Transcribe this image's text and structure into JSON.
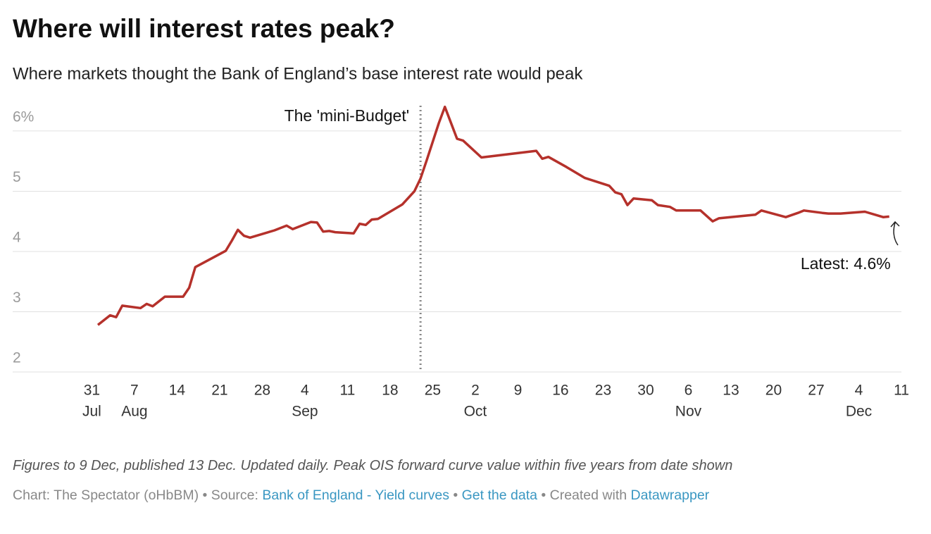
{
  "chart_data": {
    "type": "line",
    "title": "Where will interest rates peak?",
    "subtitle": "Where markets thought the Bank of England’s base interest rate would peak",
    "color": "#b5312b",
    "x": [
      "08-01",
      "08-03",
      "08-04",
      "08-05",
      "08-08",
      "08-09",
      "08-10",
      "08-11",
      "08-12",
      "08-15",
      "08-16",
      "08-17",
      "08-22",
      "08-23",
      "08-24",
      "08-25",
      "08-26",
      "08-30",
      "09-01",
      "09-02",
      "09-05",
      "09-06",
      "09-07",
      "09-08",
      "09-09",
      "09-12",
      "09-13",
      "09-14",
      "09-15",
      "09-16",
      "09-20",
      "09-22",
      "09-23",
      "09-24",
      "09-26",
      "09-27",
      "09-29",
      "09-30",
      "10-03",
      "10-12",
      "10-13",
      "10-14",
      "10-17",
      "10-20",
      "10-24",
      "10-25",
      "10-26",
      "10-27",
      "10-28",
      "10-31",
      "11-01",
      "11-03",
      "11-04",
      "11-08",
      "11-10",
      "11-11",
      "11-17",
      "11-18",
      "11-22",
      "11-24",
      "11-25",
      "11-28",
      "11-29",
      "12-01",
      "12-05",
      "12-08",
      "12-09"
    ],
    "values": [
      2.78,
      2.94,
      2.91,
      3.1,
      3.06,
      3.13,
      3.09,
      3.17,
      3.25,
      3.25,
      3.4,
      3.74,
      4.01,
      4.18,
      4.36,
      4.26,
      4.23,
      4.35,
      4.43,
      4.37,
      4.49,
      4.48,
      4.33,
      4.34,
      4.32,
      4.3,
      4.46,
      4.44,
      4.53,
      4.54,
      4.78,
      5.0,
      5.21,
      5.51,
      6.13,
      6.4,
      5.87,
      5.84,
      5.56,
      5.67,
      5.54,
      5.57,
      5.4,
      5.22,
      5.09,
      4.98,
      4.95,
      4.77,
      4.88,
      4.85,
      4.77,
      4.74,
      4.68,
      4.68,
      4.5,
      4.55,
      4.61,
      4.68,
      4.57,
      4.64,
      4.68,
      4.64,
      4.63,
      4.63,
      4.66,
      4.57,
      4.58
    ],
    "xlim": [
      "07-18",
      "12-11"
    ],
    "ylim": [
      2,
      6.42
    ],
    "yticks": [
      2,
      3,
      4,
      5,
      {
        "value": 6,
        "label": "6%"
      }
    ],
    "xticks": [
      {
        "value": "07-31",
        "label": "31"
      },
      {
        "value": "08-07",
        "label": "7"
      },
      {
        "value": "08-14",
        "label": "14"
      },
      {
        "value": "08-21",
        "label": "21"
      },
      {
        "value": "08-28",
        "label": "28"
      },
      {
        "value": "09-04",
        "label": "4"
      },
      {
        "value": "09-11",
        "label": "11"
      },
      {
        "value": "09-18",
        "label": "18"
      },
      {
        "value": "09-25",
        "label": "25"
      },
      {
        "value": "10-02",
        "label": "2"
      },
      {
        "value": "10-09",
        "label": "9"
      },
      {
        "value": "10-16",
        "label": "16"
      },
      {
        "value": "10-23",
        "label": "23"
      },
      {
        "value": "10-30",
        "label": "30"
      },
      {
        "value": "11-06",
        "label": "6"
      },
      {
        "value": "11-13",
        "label": "13"
      },
      {
        "value": "11-20",
        "label": "20"
      },
      {
        "value": "11-27",
        "label": "27"
      },
      {
        "value": "12-04",
        "label": "4"
      },
      {
        "value": "12-11",
        "label": "11"
      }
    ],
    "xtick_months": [
      {
        "value": "07-31",
        "label": "Jul"
      },
      {
        "value": "08-07",
        "label": "Aug"
      },
      {
        "value": "09-04",
        "label": "Sep"
      },
      {
        "value": "10-02",
        "label": "Oct"
      },
      {
        "value": "11-06",
        "label": "Nov"
      },
      {
        "value": "12-04",
        "label": "Dec"
      }
    ],
    "grid": true,
    "annotations": [
      {
        "text": "The 'mini-Budget'",
        "x": "09-23"
      },
      {
        "text": "Latest: 4.6%"
      }
    ],
    "notes": "Figures to 9 Dec, published 13 Dec. Updated daily. Peak OIS forward curve value within five years from date shown",
    "credits": [
      {
        "text": "Chart: The Spectator (oHbBM) • Source: "
      },
      {
        "text": "Bank of England - Yield curves",
        "link": true
      },
      {
        "text": " • "
      },
      {
        "text": "Get the data",
        "link": true
      },
      {
        "text": " • Created with "
      },
      {
        "text": "Datawrapper",
        "link": true
      }
    ]
  }
}
